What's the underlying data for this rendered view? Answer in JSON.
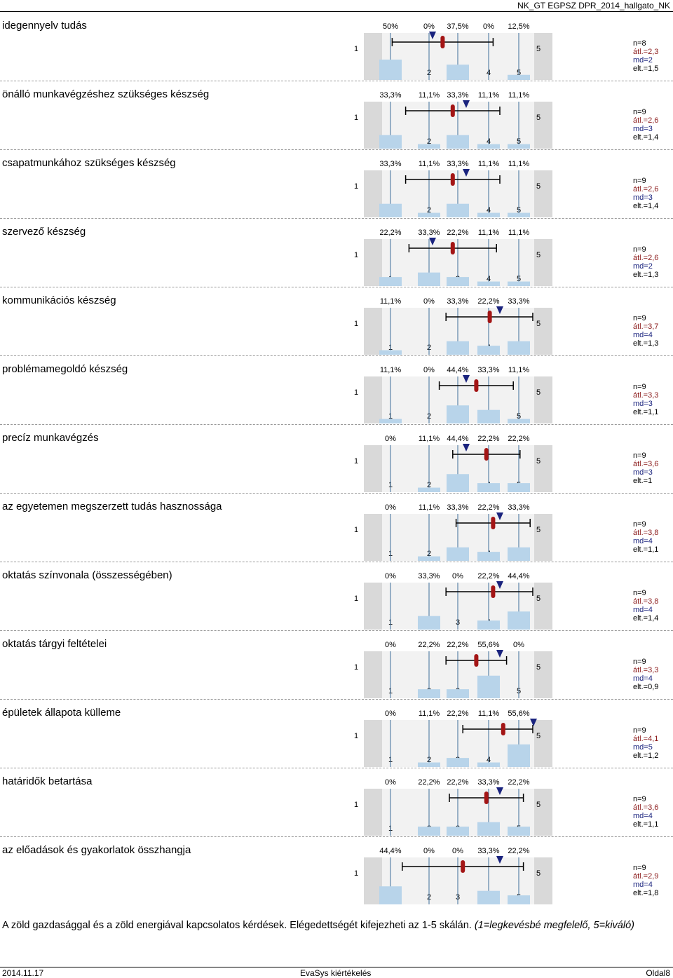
{
  "header": {
    "title": "NK_GT EGPSZ DPR_2014_hallgato_NK"
  },
  "scale": {
    "left_label": "1",
    "right_label": "5",
    "ticks": [
      "1",
      "2",
      "3",
      "4",
      "5"
    ]
  },
  "colors": {
    "bar": "#b8d4ea",
    "mean": "#a31515",
    "median": "#1a237e",
    "gridline": "#3e6e99"
  },
  "questions": [
    {
      "label": "idegennyelv tudás",
      "pcts": [
        "50%",
        "0%",
        "37,5%",
        "0%",
        "12,5%"
      ],
      "dist": [
        0.5,
        0,
        0.375,
        0,
        0.125
      ],
      "n": "n=8",
      "atl": "átl.=2,3",
      "md": "md=2",
      "elt": "elt.=1,5",
      "mean": 2.3,
      "median": 2,
      "sd": 1.5
    },
    {
      "label": "önálló munkavégzéshez szükséges készség",
      "pcts": [
        "33,3%",
        "11,1%",
        "33,3%",
        "11,1%",
        "11,1%"
      ],
      "dist": [
        0.333,
        0.111,
        0.333,
        0.111,
        0.111
      ],
      "n": "n=9",
      "atl": "átl.=2,6",
      "md": "md=3",
      "elt": "elt.=1,4",
      "mean": 2.6,
      "median": 3,
      "sd": 1.4
    },
    {
      "label": "csapatmunkához szükséges készség",
      "pcts": [
        "33,3%",
        "11,1%",
        "33,3%",
        "11,1%",
        "11,1%"
      ],
      "dist": [
        0.333,
        0.111,
        0.333,
        0.111,
        0.111
      ],
      "n": "n=9",
      "atl": "átl.=2,6",
      "md": "md=3",
      "elt": "elt.=1,4",
      "mean": 2.6,
      "median": 3,
      "sd": 1.4
    },
    {
      "label": "szervező készség",
      "pcts": [
        "22,2%",
        "33,3%",
        "22,2%",
        "11,1%",
        "11,1%"
      ],
      "dist": [
        0.222,
        0.333,
        0.222,
        0.111,
        0.111
      ],
      "n": "n=9",
      "atl": "átl.=2,6",
      "md": "md=2",
      "elt": "elt.=1,3",
      "mean": 2.6,
      "median": 2,
      "sd": 1.3
    },
    {
      "label": "kommunikációs készség",
      "pcts": [
        "11,1%",
        "0%",
        "33,3%",
        "22,2%",
        "33,3%"
      ],
      "dist": [
        0.111,
        0,
        0.333,
        0.222,
        0.333
      ],
      "n": "n=9",
      "atl": "átl.=3,7",
      "md": "md=4",
      "elt": "elt.=1,3",
      "mean": 3.7,
      "median": 4,
      "sd": 1.3
    },
    {
      "label": "problémamegoldó készség",
      "pcts": [
        "11,1%",
        "0%",
        "44,4%",
        "33,3%",
        "11,1%"
      ],
      "dist": [
        0.111,
        0,
        0.444,
        0.333,
        0.111
      ],
      "n": "n=9",
      "atl": "átl.=3,3",
      "md": "md=3",
      "elt": "elt.=1,1",
      "mean": 3.3,
      "median": 3,
      "sd": 1.1
    },
    {
      "label": "precíz munkavégzés",
      "pcts": [
        "0%",
        "11,1%",
        "44,4%",
        "22,2%",
        "22,2%"
      ],
      "dist": [
        0,
        0.111,
        0.444,
        0.222,
        0.222
      ],
      "n": "n=9",
      "atl": "átl.=3,6",
      "md": "md=3",
      "elt": "elt.=1",
      "mean": 3.6,
      "median": 3,
      "sd": 1.0
    },
    {
      "label": "az egyetemen megszerzett tudás hasznossága",
      "pcts": [
        "0%",
        "11,1%",
        "33,3%",
        "22,2%",
        "33,3%"
      ],
      "dist": [
        0,
        0.111,
        0.333,
        0.222,
        0.333
      ],
      "n": "n=9",
      "atl": "átl.=3,8",
      "md": "md=4",
      "elt": "elt.=1,1",
      "mean": 3.8,
      "median": 4,
      "sd": 1.1
    },
    {
      "label": "oktatás színvonala (összességében)",
      "pcts": [
        "0%",
        "33,3%",
        "0%",
        "22,2%",
        "44,4%"
      ],
      "dist": [
        0,
        0.333,
        0,
        0.222,
        0.444
      ],
      "n": "n=9",
      "atl": "átl.=3,8",
      "md": "md=4",
      "elt": "elt.=1,4",
      "mean": 3.8,
      "median": 4,
      "sd": 1.4
    },
    {
      "label": "oktatás tárgyi feltételei",
      "pcts": [
        "0%",
        "22,2%",
        "22,2%",
        "55,6%",
        "0%"
      ],
      "dist": [
        0,
        0.222,
        0.222,
        0.556,
        0
      ],
      "n": "n=9",
      "atl": "átl.=3,3",
      "md": "md=4",
      "elt": "elt.=0,9",
      "mean": 3.3,
      "median": 4,
      "sd": 0.9
    },
    {
      "label": "épületek állapota külleme",
      "pcts": [
        "0%",
        "11,1%",
        "22,2%",
        "11,1%",
        "55,6%"
      ],
      "dist": [
        0,
        0.111,
        0.222,
        0.111,
        0.556
      ],
      "n": "n=9",
      "atl": "átl.=4,1",
      "md": "md=5",
      "elt": "elt.=1,2",
      "mean": 4.1,
      "median": 5,
      "sd": 1.2
    },
    {
      "label": "határidők betartása",
      "pcts": [
        "0%",
        "22,2%",
        "22,2%",
        "33,3%",
        "22,2%"
      ],
      "dist": [
        0,
        0.222,
        0.222,
        0.333,
        0.222
      ],
      "n": "n=9",
      "atl": "átl.=3,6",
      "md": "md=4",
      "elt": "elt.=1,1",
      "mean": 3.6,
      "median": 4,
      "sd": 1.1
    },
    {
      "label": "az előadások és gyakorlatok összhangja",
      "pcts": [
        "44,4%",
        "0%",
        "0%",
        "33,3%",
        "22,2%"
      ],
      "dist": [
        0.444,
        0,
        0,
        0.333,
        0.222
      ],
      "n": "n=9",
      "atl": "átl.=2,9",
      "md": "md=4",
      "elt": "elt.=1,8",
      "mean": 2.9,
      "median": 4,
      "sd": 1.8
    }
  ],
  "footer_question": {
    "text": "A zöld gazdasággal és a zöld energiával kapcsolatos kérdések.   Elégedettségét kifejezheti az 1-5 skálán.",
    "note": "(1=legkevésbé megfelelő, 5=kiváló)"
  },
  "footer": {
    "date": "2014.11.17",
    "center": "EvaSys kiértékelés",
    "page": "Oldal8"
  }
}
